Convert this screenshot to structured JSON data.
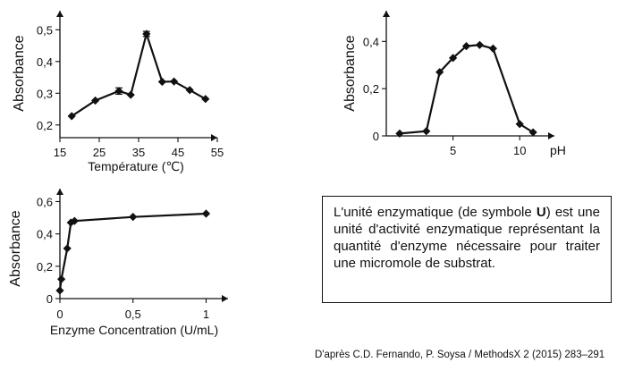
{
  "chart_data": [
    {
      "type": "line",
      "xlabel": "Température (℃)",
      "ylabel": "Absorbance",
      "xlim": [
        15,
        55
      ],
      "ylim": [
        0.16,
        0.56
      ],
      "xticks": [
        15,
        25,
        35,
        45,
        55
      ],
      "yticks": [
        0.2,
        0.3,
        0.4,
        0.5
      ],
      "xticklabels": [
        "15",
        "25",
        "35",
        "45",
        "55"
      ],
      "yticklabels": [
        "0,2",
        "0,3",
        "0,4",
        "0,5"
      ],
      "series": [
        {
          "x": [
            18,
            24,
            30,
            33,
            37,
            41,
            44,
            48,
            52
          ],
          "y": [
            0.228,
            0.277,
            0.307,
            0.295,
            0.487,
            0.336,
            0.337,
            0.31,
            0.282
          ]
        }
      ],
      "error_bars": [
        {
          "x": 30,
          "y": 0.307,
          "err": 0.01
        },
        {
          "x": 37,
          "y": 0.487,
          "err": 0.008
        }
      ]
    },
    {
      "type": "line",
      "xlabel": "pH",
      "ylabel": "Absorbance",
      "xlim": [
        0,
        12.6
      ],
      "ylim": [
        0,
        0.53
      ],
      "xticks": [
        5,
        10
      ],
      "yticks": [
        0,
        0.2,
        0.4
      ],
      "xticklabels": [
        "5",
        "10"
      ],
      "yticklabels": [
        "0",
        "0,2",
        "0,4"
      ],
      "series": [
        {
          "x": [
            1,
            3,
            4,
            5,
            6,
            7,
            8,
            10,
            11
          ],
          "y": [
            0.01,
            0.02,
            0.27,
            0.33,
            0.38,
            0.385,
            0.37,
            0.05,
            0.015
          ]
        }
      ]
    },
    {
      "type": "line",
      "xlabel": "Enzyme Concentration (U/mL)",
      "ylabel": "Absorbance",
      "xlim": [
        0,
        1.15
      ],
      "ylim": [
        0,
        0.68
      ],
      "xticks": [
        0,
        0.5,
        1
      ],
      "yticks": [
        0,
        0.2,
        0.4,
        0.6
      ],
      "xticklabels": [
        "0",
        "0,5",
        "1"
      ],
      "yticklabels": [
        "0",
        "0,2",
        "0,4",
        "0,6"
      ],
      "series": [
        {
          "x": [
            0,
            0.01,
            0.05,
            0.075,
            0.1,
            0.5,
            1.0
          ],
          "y": [
            0.05,
            0.12,
            0.31,
            0.47,
            0.48,
            0.505,
            0.525
          ]
        }
      ]
    }
  ],
  "info_box": {
    "before": "L'unité enzymatique (de symbole ",
    "bold": "U",
    "after": ") est une unité d'activité enzymatique représentant la quantité d'enzyme nécessaire pour traiter une micromole de substrat."
  },
  "source": "D'après C.D. Fernando, P. Soysa / MethodsX 2 (2015) 283–291"
}
